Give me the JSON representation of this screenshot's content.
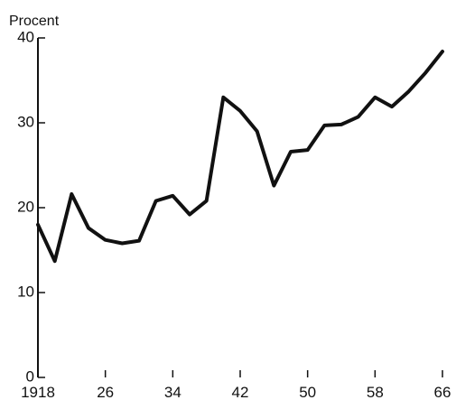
{
  "chart_data": {
    "type": "line",
    "ylabel": "Procent",
    "xlabel": "",
    "title": "",
    "x": [
      1918,
      1920,
      1922,
      1924,
      1926,
      1928,
      1930,
      1932,
      1934,
      1936,
      1938,
      1940,
      1942,
      1944,
      1946,
      1948,
      1950,
      1952,
      1954,
      1956,
      1958,
      1960,
      1962,
      1964,
      1966
    ],
    "series": [
      {
        "values": [
          18,
          13.7,
          21.6,
          17.6,
          16.2,
          15.8,
          16.1,
          20.8,
          21.4,
          19.2,
          20.8,
          33,
          31.4,
          29,
          22.6,
          26.6,
          26.8,
          29.7,
          29.8,
          30.7,
          33,
          31.9,
          33.7,
          35.9,
          38.4
        ]
      }
    ],
    "xticks": [
      1918,
      1926,
      1934,
      1942,
      1950,
      1958,
      1966
    ],
    "xtick_labels": [
      "1918",
      "26",
      "34",
      "42",
      "50",
      "58",
      "66"
    ],
    "yticks": [
      0,
      10,
      20,
      30,
      40
    ],
    "ytick_labels": [
      "0",
      "10",
      "20",
      "30",
      "40"
    ],
    "xlim": [
      1918,
      1966
    ],
    "ylim": [
      0,
      40
    ],
    "grid": false,
    "line_color": "#111111",
    "axis_color": "#111111"
  }
}
